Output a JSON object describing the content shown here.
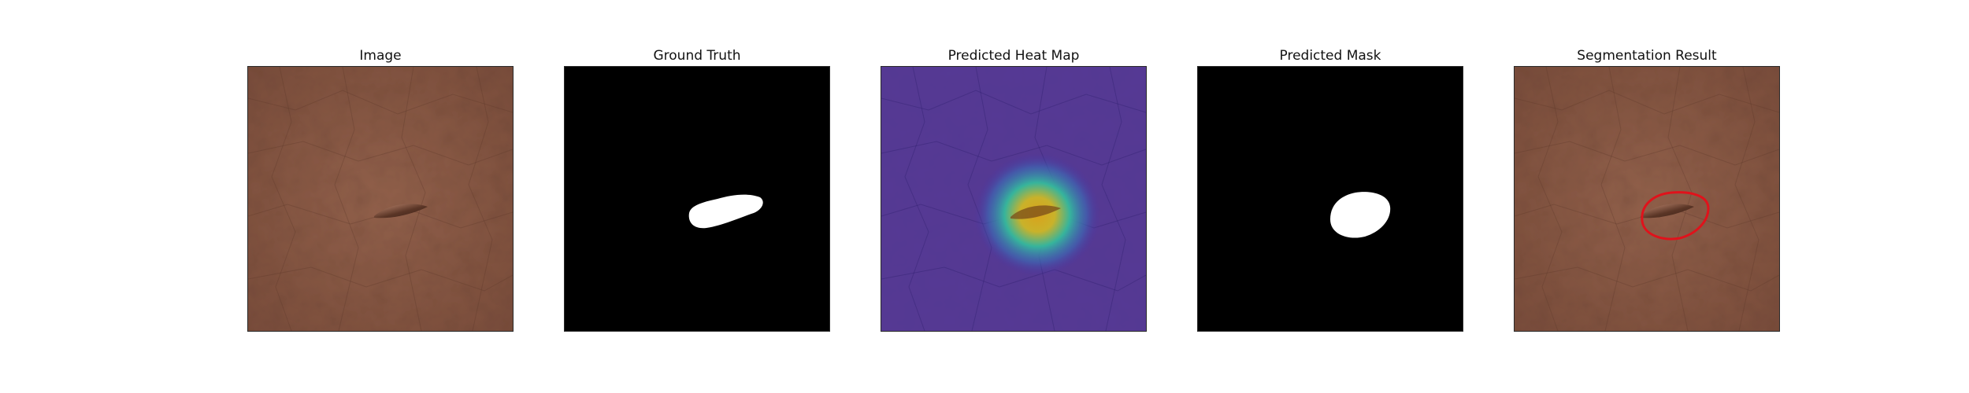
{
  "panels": [
    {
      "id": "image",
      "title": "Image"
    },
    {
      "id": "ground_truth",
      "title": "Ground Truth"
    },
    {
      "id": "heat_map",
      "title": "Predicted Heat Map"
    },
    {
      "id": "mask",
      "title": "Predicted Mask"
    },
    {
      "id": "segmentation",
      "title": "Segmentation Result"
    }
  ],
  "colors": {
    "leather_base": "#8b5a45",
    "leather_dark": "#6f4636",
    "mask_background": "#000000",
    "mask_foreground": "#ffffff",
    "heat_low": "#4630a8",
    "heat_mid": "#2fb59a",
    "heat_high": "#e7b21e",
    "contour": "#e0121b"
  }
}
